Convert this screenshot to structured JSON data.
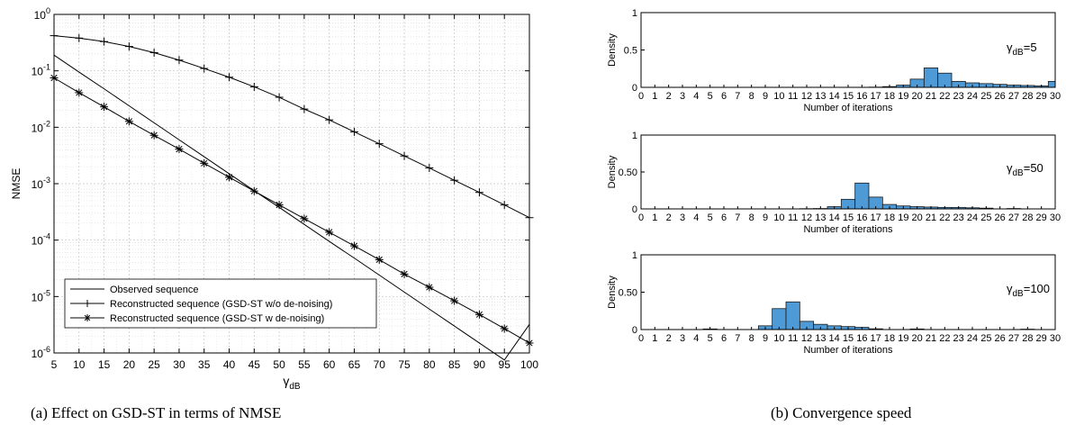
{
  "captions": {
    "a": "(a) Effect on GSD-ST in terms of NMSE",
    "b": "(b) Convergence speed"
  },
  "chart_data": [
    {
      "type": "line",
      "yscale": "log",
      "xlabel_symbol": "γ",
      "xlabel_sub": "dB",
      "ylabel": "NMSE",
      "xlim": [
        5,
        100
      ],
      "ylim": [
        1e-06,
        1
      ],
      "xticks": [
        5,
        10,
        15,
        20,
        25,
        30,
        35,
        40,
        45,
        50,
        55,
        60,
        65,
        70,
        75,
        80,
        85,
        90,
        95,
        100
      ],
      "yticks": [
        1e-06,
        1e-05,
        0.0001,
        0.001,
        0.01,
        0.1,
        1
      ],
      "yticklabels": [
        {
          "base": "10",
          "exp": "-6"
        },
        {
          "base": "10",
          "exp": "-5"
        },
        {
          "base": "10",
          "exp": "-4"
        },
        {
          "base": "10",
          "exp": "-3"
        },
        {
          "base": "10",
          "exp": "-2"
        },
        {
          "base": "10",
          "exp": "-1"
        },
        {
          "base": "10",
          "exp": "0"
        }
      ],
      "grid": true,
      "legend_position": "bottom-left",
      "x": [
        5,
        10,
        15,
        20,
        25,
        30,
        35,
        40,
        45,
        50,
        55,
        60,
        65,
        70,
        75,
        80,
        85,
        90,
        95,
        100
      ],
      "series": [
        {
          "name": "Observed sequence",
          "marker": "none",
          "values": [
            0.19,
            0.095,
            0.048,
            0.024,
            0.012,
            0.006,
            0.003,
            0.0015,
            0.00075,
            0.00038,
            0.00019,
            9.5e-05,
            4.8e-05,
            2.4e-05,
            1.2e-05,
            6e-06,
            3e-06,
            1.5e-06,
            7.5e-07,
            3.2e-06
          ]
        },
        {
          "name": "Reconstructed sequence (GSD-ST w/o de-noising)",
          "marker": "plus",
          "values": [
            0.42,
            0.38,
            0.33,
            0.27,
            0.21,
            0.155,
            0.11,
            0.077,
            0.052,
            0.034,
            0.021,
            0.0135,
            0.0083,
            0.0051,
            0.0031,
            0.0019,
            0.00115,
            0.0007,
            0.00042,
            0.00025
          ]
        },
        {
          "name": "Reconstructed sequence (GSD-ST w de-noising)",
          "marker": "asterisk",
          "values": [
            0.075,
            0.041,
            0.023,
            0.0127,
            0.0072,
            0.0041,
            0.0023,
            0.0013,
            0.00074,
            0.00042,
            0.00024,
            0.000138,
            7.9e-05,
            4.5e-05,
            2.5e-05,
            1.46e-05,
            8.4e-06,
            4.8e-06,
            2.7e-06,
            1.5e-06
          ]
        }
      ]
    },
    {
      "type": "bar",
      "annotation_symbol": "γ",
      "annotation_sub": "dB",
      "annotation_value": "=5",
      "xlabel": "Number of iterations",
      "ylabel": "Density",
      "xlim": [
        0,
        30
      ],
      "ylim": [
        0,
        1
      ],
      "yticks": [
        0,
        0.5,
        1
      ],
      "yticklabels": [
        "0",
        "0.5",
        "1"
      ],
      "xticks": [
        0,
        1,
        2,
        3,
        4,
        5,
        6,
        7,
        8,
        9,
        10,
        11,
        12,
        13,
        14,
        15,
        16,
        17,
        18,
        19,
        20,
        21,
        22,
        23,
        24,
        25,
        26,
        27,
        28,
        29,
        30
      ],
      "bar_color": "#4d9ad6",
      "categories": [
        17,
        18,
        19,
        20,
        21,
        22,
        23,
        24,
        25,
        26,
        27,
        28,
        29,
        30
      ],
      "values": [
        0.003,
        0.01,
        0.03,
        0.11,
        0.26,
        0.19,
        0.08,
        0.06,
        0.05,
        0.04,
        0.03,
        0.025,
        0.02,
        0.08
      ]
    },
    {
      "type": "bar",
      "annotation_symbol": "γ",
      "annotation_sub": "dB",
      "annotation_value": "=50",
      "xlabel": "Number of iterations",
      "ylabel": "Density",
      "xlim": [
        0,
        30
      ],
      "ylim": [
        0,
        1
      ],
      "yticks": [
        0,
        0.5,
        1
      ],
      "yticklabels": [
        "0",
        "0.50",
        "1"
      ],
      "xticks": [
        0,
        1,
        2,
        3,
        4,
        5,
        6,
        7,
        8,
        9,
        10,
        11,
        12,
        13,
        14,
        15,
        16,
        17,
        18,
        19,
        20,
        21,
        22,
        23,
        24,
        25,
        26,
        27,
        28,
        29,
        30
      ],
      "bar_color": "#4d9ad6",
      "categories": [
        12,
        13,
        14,
        15,
        16,
        17,
        18,
        19,
        20,
        21,
        22,
        23,
        24,
        25,
        27
      ],
      "values": [
        0.003,
        0.005,
        0.03,
        0.13,
        0.35,
        0.16,
        0.06,
        0.04,
        0.03,
        0.025,
        0.02,
        0.02,
        0.015,
        0.01,
        0.005
      ]
    },
    {
      "type": "bar",
      "annotation_symbol": "γ",
      "annotation_sub": "dB",
      "annotation_value": "=100",
      "xlabel": "Number of iterations",
      "ylabel": "Density",
      "xlim": [
        0,
        30
      ],
      "ylim": [
        0,
        1
      ],
      "yticks": [
        0,
        0.5,
        1
      ],
      "yticklabels": [
        "0",
        "0.50",
        "1"
      ],
      "xticks": [
        0,
        1,
        2,
        3,
        4,
        5,
        6,
        7,
        8,
        9,
        10,
        11,
        12,
        13,
        14,
        15,
        16,
        17,
        18,
        19,
        20,
        21,
        22,
        23,
        24,
        25,
        26,
        27,
        28,
        29,
        30
      ],
      "bar_color": "#4d9ad6",
      "categories": [
        5,
        9,
        10,
        11,
        12,
        13,
        14,
        15,
        16,
        17,
        20,
        28
      ],
      "values": [
        0.008,
        0.05,
        0.28,
        0.37,
        0.11,
        0.07,
        0.05,
        0.04,
        0.03,
        0.01,
        0.008,
        0.005
      ]
    }
  ]
}
